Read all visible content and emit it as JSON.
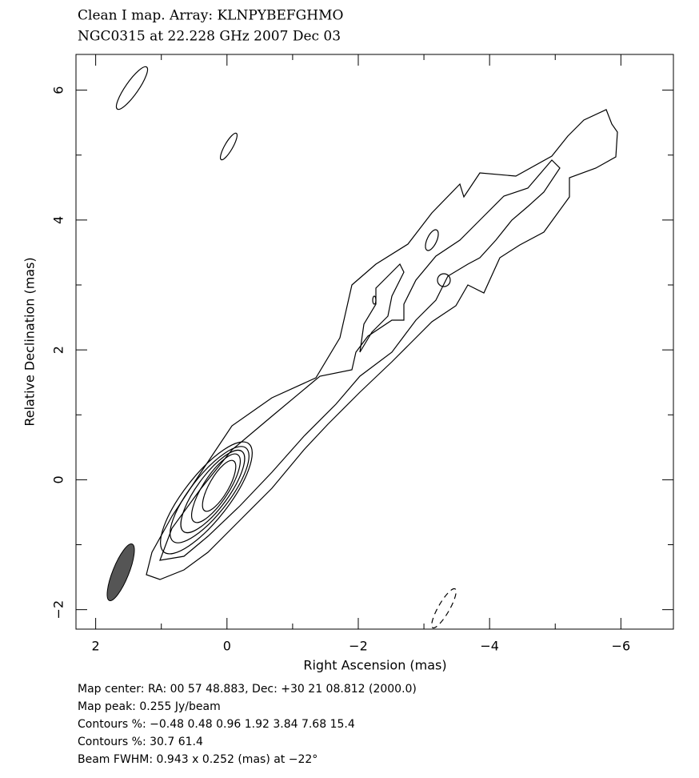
{
  "chart_data": {
    "type": "contour",
    "title": "Clean I map.  Array:  KLNPYBEFGHMO",
    "subtitle": "NGC0315 at 22.228 GHz 2007 Dec 03",
    "xlabel": "Right Ascension  (mas)",
    "ylabel": "Relative Declination  (mas)",
    "xlim": [
      2.3,
      -6.8
    ],
    "ylim": [
      -2.3,
      6.55
    ],
    "xticks": [
      2,
      0,
      {
        "value": -2,
        "label": "−2"
      },
      {
        "value": -4,
        "label": "−4"
      },
      {
        "value": -6,
        "label": "−6"
      }
    ],
    "yticks": [
      {
        "value": -2,
        "label": "−2"
      },
      0,
      2,
      4,
      6
    ],
    "xticks_minor": [
      1,
      -1,
      -3,
      -5
    ],
    "yticks_minor": [
      -1,
      1,
      3,
      5
    ],
    "annotations": [
      "Map center:  RA: 00 57 48.883,  Dec: +30 21 08.812 (2000.0)",
      "Map peak: 0.255 Jy/beam",
      "Contours %: −0.48 0.48 0.96 1.92 3.84 7.68 15.4",
      "Contours %: 30.7 61.4",
      "Beam FWHM: 0.943 x 0.252 (mas) at −22°"
    ]
  }
}
